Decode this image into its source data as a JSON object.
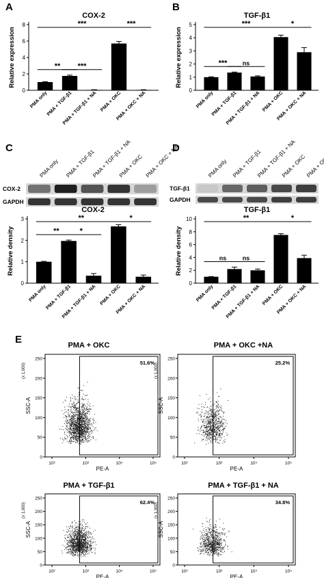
{
  "chart_data": [
    {
      "panel": "A",
      "type": "bar",
      "title": "COX-2",
      "ylabel": "Relative expression",
      "categories": [
        "PMA only",
        "PMA + TGF-β1",
        "PMA + TGF-β1 + NA",
        "PMA + OKC",
        "PMA + OKC + NA"
      ],
      "values": [
        1.0,
        1.75,
        0.05,
        5.7,
        0.05
      ],
      "errors": [
        0.05,
        0.1,
        0.02,
        0.25,
        0.02
      ],
      "ylim": [
        0,
        8
      ],
      "yticks": [
        "0",
        "2",
        "4",
        "6",
        "8"
      ],
      "significance": [
        {
          "from": 0,
          "to": 1,
          "label": "**"
        },
        {
          "from": 1,
          "to": 2,
          "label": "***"
        },
        {
          "from": 0,
          "to": 3,
          "label": "***"
        },
        {
          "from": 3,
          "to": 4,
          "label": "***"
        }
      ]
    },
    {
      "panel": "B",
      "type": "bar",
      "title": "TGF-β1",
      "ylabel": "Relative expression",
      "categories": [
        "PMA only",
        "PMA + TGF-β1",
        "PMA + TGF-β1 + NA",
        "PMA + OKC",
        "PMA + OKC + NA"
      ],
      "values": [
        1.0,
        1.35,
        1.05,
        4.05,
        2.9
      ],
      "errors": [
        0.03,
        0.04,
        0.05,
        0.15,
        0.35
      ],
      "ylim": [
        0,
        5
      ],
      "yticks": [
        "0",
        "1",
        "2",
        "3",
        "4",
        "5"
      ],
      "significance": [
        {
          "from": 0,
          "to": 1,
          "label": "***"
        },
        {
          "from": 1,
          "to": 2,
          "label": "ns"
        },
        {
          "from": 0,
          "to": 3,
          "label": "***"
        },
        {
          "from": 3,
          "to": 4,
          "label": "*"
        }
      ]
    },
    {
      "panel": "C",
      "type": "bar",
      "title": "COX-2",
      "ylabel": "Relative density",
      "categories": [
        "PMA only",
        "PMA + TGF-β1",
        "PMA + TGF-β1 + NA",
        "PMA + OKC",
        "PMA + OKC + NA"
      ],
      "values": [
        1.0,
        1.97,
        0.35,
        2.65,
        0.3
      ],
      "errors": [
        0.02,
        0.04,
        0.1,
        0.08,
        0.08
      ],
      "ylim": [
        0,
        3
      ],
      "yticks": [
        "0",
        "1",
        "2",
        "3"
      ],
      "significance": [
        {
          "from": 0,
          "to": 1,
          "label": "**"
        },
        {
          "from": 1,
          "to": 2,
          "label": "*"
        },
        {
          "from": 0,
          "to": 3,
          "label": "**"
        },
        {
          "from": 3,
          "to": 4,
          "label": "*"
        }
      ]
    },
    {
      "panel": "D",
      "type": "bar",
      "title": "TGF-β1",
      "ylabel": "Relative density",
      "categories": [
        "PMA only",
        "PMA + TGF-β1",
        "PMA + TGF-β1 + NA",
        "PMA + OKC",
        "PMA + OKC + NA"
      ],
      "values": [
        1.0,
        2.2,
        2.0,
        7.5,
        3.9
      ],
      "errors": [
        0.03,
        0.3,
        0.2,
        0.2,
        0.45
      ],
      "ylim": [
        0,
        10
      ],
      "yticks": [
        "0",
        "2",
        "4",
        "6",
        "8",
        "10"
      ],
      "significance": [
        {
          "from": 0,
          "to": 1,
          "label": "ns"
        },
        {
          "from": 1,
          "to": 2,
          "label": "ns"
        },
        {
          "from": 0,
          "to": 3,
          "label": "**"
        },
        {
          "from": 3,
          "to": 4,
          "label": "*"
        }
      ]
    }
  ],
  "panel_letters": {
    "A": "A",
    "B": "B",
    "C": "C",
    "D": "D",
    "E": "E"
  },
  "blots": {
    "C": {
      "lane_labels": [
        "PMA only",
        "PMA + TGF-β1",
        "PMA + TGF-β1 + NA",
        "PMA + OKC",
        "PMA + OKC + NA"
      ],
      "rows": [
        {
          "label": "COX-2",
          "intensity": [
            0.55,
            0.95,
            0.7,
            0.85,
            0.35
          ]
        },
        {
          "label": "GAPDH",
          "intensity": [
            0.85,
            0.85,
            0.85,
            0.85,
            0.85
          ]
        }
      ]
    },
    "D": {
      "lane_labels": [
        "PMA only",
        "PMA + TGF-β1",
        "PMA + TGF-β1 + NA",
        "PMA + OKC",
        "PMA + OKC + NA"
      ],
      "rows": [
        {
          "label": "TGF-β1",
          "intensity": [
            0.15,
            0.6,
            0.65,
            0.75,
            0.8
          ]
        },
        {
          "label": "GAPDH",
          "intensity": [
            0.75,
            0.75,
            0.75,
            0.8,
            0.8
          ]
        }
      ]
    }
  },
  "flow": [
    {
      "title": "PMA + OKC",
      "percent": "51.6%",
      "density": 1.0
    },
    {
      "title": "PMA +  OKC +NA",
      "percent": "25.2%",
      "density": 0.5
    },
    {
      "title": "PMA + TGF-β1",
      "percent": "62.4%",
      "density": 0.85
    },
    {
      "title": "PMA + TGF-β1 + NA",
      "percent": "34.8%",
      "density": 0.5
    }
  ],
  "flow_axes": {
    "ylabel": "SSC-A",
    "xlabel": "PE-A",
    "yunit": "(x 1,000)",
    "yticks": [
      "0",
      "50",
      "100",
      "150",
      "200",
      "250"
    ],
    "xticks": [
      "10²",
      "10³",
      "10⁴",
      "10⁵"
    ]
  }
}
